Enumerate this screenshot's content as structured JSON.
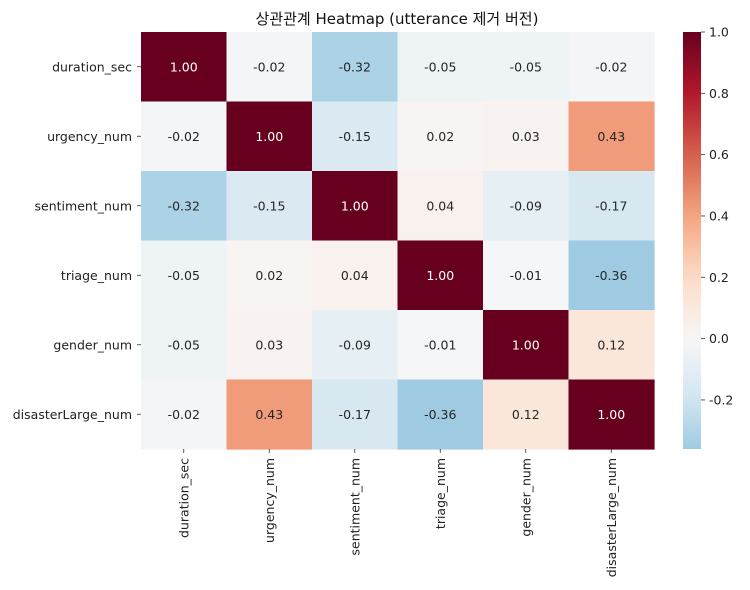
{
  "chart_data": {
    "type": "heatmap",
    "title": "상관관계 Heatmap (utterance 제거 버전)",
    "row_labels": [
      "duration_sec",
      "urgency_num",
      "sentiment_num",
      "triage_num",
      "gender_num",
      "disasterLarge_num"
    ],
    "col_labels": [
      "duration_sec",
      "urgency_num",
      "sentiment_num",
      "triage_num",
      "gender_num",
      "disasterLarge_num"
    ],
    "values": [
      [
        1.0,
        -0.02,
        -0.32,
        -0.05,
        -0.05,
        -0.02
      ],
      [
        -0.02,
        1.0,
        -0.15,
        0.02,
        0.03,
        0.43
      ],
      [
        -0.32,
        -0.15,
        1.0,
        0.04,
        -0.09,
        -0.17
      ],
      [
        -0.05,
        0.02,
        0.04,
        1.0,
        -0.01,
        -0.36
      ],
      [
        -0.05,
        0.03,
        -0.09,
        -0.01,
        1.0,
        0.12
      ],
      [
        -0.02,
        0.43,
        -0.17,
        -0.36,
        0.12,
        1.0
      ]
    ],
    "cell_labels": [
      [
        "1.00",
        "-0.02",
        "-0.32",
        "-0.05",
        "-0.05",
        "-0.02"
      ],
      [
        "-0.02",
        "1.00",
        "-0.15",
        "0.02",
        "0.03",
        "0.43"
      ],
      [
        "-0.32",
        "-0.15",
        "1.00",
        "0.04",
        "-0.09",
        "-0.17"
      ],
      [
        "-0.05",
        "0.02",
        "0.04",
        "1.00",
        "-0.01",
        "-0.36"
      ],
      [
        "-0.05",
        "0.03",
        "-0.09",
        "-0.01",
        "1.00",
        "0.12"
      ],
      [
        "-0.02",
        "0.43",
        "-0.17",
        "-0.36",
        "0.12",
        "1.00"
      ]
    ],
    "colormap": "RdBu_r",
    "center": 0,
    "vmin": -0.36,
    "vmax": 1.0,
    "colorbar": {
      "ticks": [
        -0.2,
        0.0,
        0.2,
        0.4,
        0.6,
        0.8,
        1.0
      ],
      "tick_labels": [
        "-0.2",
        "0.0",
        "0.2",
        "0.4",
        "0.6",
        "0.8",
        "1.0"
      ]
    },
    "colormap_stops": [
      {
        "t": 0.0,
        "color": "#053061"
      },
      {
        "t": 0.1,
        "color": "#2166ac"
      },
      {
        "t": 0.2,
        "color": "#4393c3"
      },
      {
        "t": 0.3,
        "color": "#92c5de"
      },
      {
        "t": 0.4,
        "color": "#d1e5f0"
      },
      {
        "t": 0.5,
        "color": "#f7f7f7"
      },
      {
        "t": 0.6,
        "color": "#fddbc7"
      },
      {
        "t": 0.7,
        "color": "#f4a582"
      },
      {
        "t": 0.8,
        "color": "#d6604d"
      },
      {
        "t": 0.9,
        "color": "#b2182b"
      },
      {
        "t": 1.0,
        "color": "#67001f"
      }
    ],
    "grid": false
  }
}
